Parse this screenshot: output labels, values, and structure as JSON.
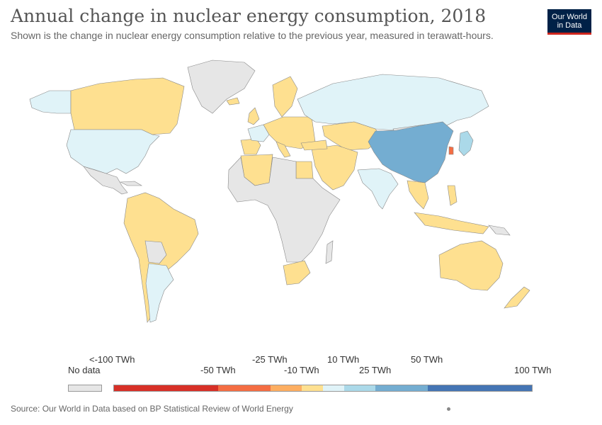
{
  "header": {
    "title": "Annual change in nuclear energy consumption, 2018",
    "subtitle": "Shown is the change in nuclear energy consumption relative to the previous year, measured in terawatt-hours."
  },
  "logo": {
    "line1": "Our World",
    "line2": "in Data"
  },
  "colors": {
    "no_data": "#e6e6e6",
    "bin_lt_minus100": "#d73027",
    "bin_minus50": "#f46d43",
    "bin_minus25": "#fdae61",
    "bin_minus10": "#fee090",
    "bin_10": "#e0f3f8",
    "bin_25": "#abd9e9",
    "bin_50": "#74add1",
    "bin_100": "#4575b4",
    "outline": "#888888"
  },
  "legend": {
    "no_data_label": "No data",
    "labels": [
      "<-100 TWh",
      "-50 TWh",
      "-25 TWh",
      "-10 TWh",
      "10 TWh",
      "25 TWh",
      "50 TWh",
      "100 TWh"
    ]
  },
  "footer": {
    "source": "Source: Our World in Data based on BP Statistical Review of World Energy"
  }
}
